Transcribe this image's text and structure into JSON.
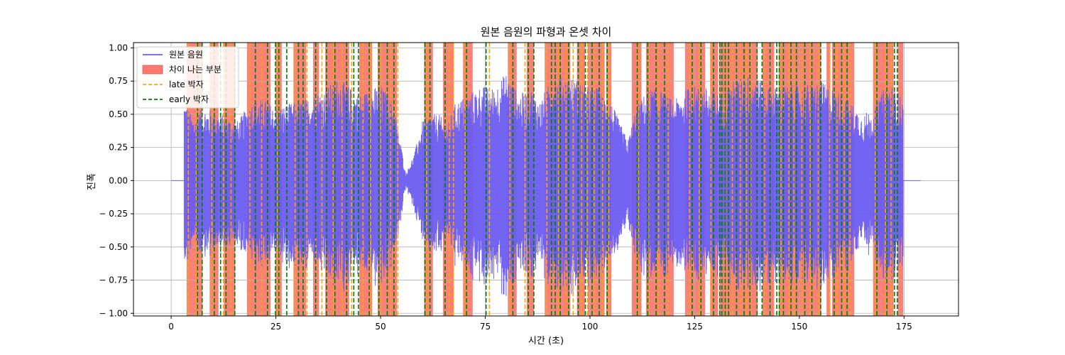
{
  "chart_data": {
    "type": "line",
    "title": "원본 음원의 파형과 온셋 차이",
    "xlabel": "시간 (초)",
    "ylabel": "진폭",
    "xlim": [
      -9,
      188
    ],
    "ylim": [
      -1.02,
      1.04
    ],
    "x_ticks": [
      0,
      25,
      50,
      75,
      100,
      125,
      150,
      175
    ],
    "x_tick_labels": [
      "0",
      "25",
      "50",
      "75",
      "100",
      "125",
      "150",
      "175"
    ],
    "y_ticks": [
      1.0,
      0.75,
      0.5,
      0.25,
      0.0,
      -0.25,
      -0.5,
      -0.75,
      -1.0
    ],
    "y_tick_labels": [
      "1.00",
      "0.75",
      "0.50",
      "0.25",
      "0.00",
      "− 0.25",
      "− 0.50",
      "− 0.75",
      "− 1.00"
    ],
    "grid": true,
    "legend_position": "top-left",
    "colors": {
      "waveform": "#6b5cf0",
      "diff_region": "#fa7a70",
      "late": "#ffa500",
      "early": "#008000"
    },
    "series": [
      {
        "name": "원본 음원",
        "kind": "waveform",
        "duration": 179,
        "audio_start": 3.1,
        "audio_end": 174.8,
        "envelope_knots": [
          [
            3.1,
            0.62
          ],
          [
            5,
            0.48
          ],
          [
            8,
            0.55
          ],
          [
            12,
            0.5
          ],
          [
            16,
            0.45
          ],
          [
            19,
            0.6
          ],
          [
            22,
            0.62
          ],
          [
            25,
            0.55
          ],
          [
            28,
            0.58
          ],
          [
            31,
            0.6
          ],
          [
            34,
            0.65
          ],
          [
            37,
            0.7
          ],
          [
            40,
            0.78
          ],
          [
            42,
            0.72
          ],
          [
            45,
            0.65
          ],
          [
            48,
            0.7
          ],
          [
            50,
            0.72
          ],
          [
            53,
            0.6
          ],
          [
            55,
            0.25
          ],
          [
            56,
            0.05
          ],
          [
            58,
            0.2
          ],
          [
            60,
            0.45
          ],
          [
            62,
            0.5
          ],
          [
            64,
            0.5
          ],
          [
            66,
            0.42
          ],
          [
            68,
            0.6
          ],
          [
            71,
            0.65
          ],
          [
            74,
            0.72
          ],
          [
            77,
            0.7
          ],
          [
            80,
            0.82
          ],
          [
            83,
            0.65
          ],
          [
            86,
            0.7
          ],
          [
            88,
            0.6
          ],
          [
            91,
            0.78
          ],
          [
            95,
            0.8
          ],
          [
            99,
            0.72
          ],
          [
            102,
            0.7
          ],
          [
            105,
            0.6
          ],
          [
            107,
            0.45
          ],
          [
            109,
            0.3
          ],
          [
            111,
            0.55
          ],
          [
            114,
            0.7
          ],
          [
            117,
            0.68
          ],
          [
            120,
            0.6
          ],
          [
            124,
            0.72
          ],
          [
            128,
            0.7
          ],
          [
            131,
            0.65
          ],
          [
            135,
            0.78
          ],
          [
            139,
            0.8
          ],
          [
            143,
            0.7
          ],
          [
            147,
            0.72
          ],
          [
            151,
            0.72
          ],
          [
            155,
            0.75
          ],
          [
            158,
            0.7
          ],
          [
            162,
            0.6
          ],
          [
            165,
            0.5
          ],
          [
            168,
            0.55
          ],
          [
            171,
            0.75
          ],
          [
            173,
            0.7
          ],
          [
            174.8,
            0.6
          ]
        ]
      }
    ],
    "diff_regions": {
      "name": "차이 나는 부분",
      "spans": [
        [
          3.7,
          7.5
        ],
        [
          9.2,
          11.3
        ],
        [
          12.6,
          15.3
        ],
        [
          18.1,
          23.7
        ],
        [
          24.9,
          26.4
        ],
        [
          29.2,
          32.2
        ],
        [
          33.9,
          35.3
        ],
        [
          36.8,
          42.5
        ],
        [
          44.9,
          48.0
        ],
        [
          49.3,
          53.9
        ],
        [
          60.4,
          62.5
        ],
        [
          64.9,
          67.5
        ],
        [
          69.7,
          72.0
        ],
        [
          80.4,
          82.5
        ],
        [
          84.9,
          86.6
        ],
        [
          89.2,
          95.3
        ],
        [
          96.9,
          98.8
        ],
        [
          99.5,
          103.5
        ],
        [
          103.9,
          105.1
        ],
        [
          110.0,
          112.3
        ],
        [
          113.4,
          120.0
        ],
        [
          122.7,
          127.5
        ],
        [
          128.7,
          130.6
        ],
        [
          130.9,
          140.0
        ],
        [
          141.2,
          144.0
        ],
        [
          145.1,
          155.2
        ],
        [
          156.5,
          157.4
        ],
        [
          157.8,
          163.1
        ],
        [
          167.6,
          172.5
        ],
        [
          173.5,
          174.8
        ]
      ]
    },
    "late_onsets": {
      "name": "late 박자",
      "times": [
        4.1,
        6.0,
        9.7,
        12.5,
        14.3,
        18.8,
        21.6,
        25.4,
        29.6,
        32.4,
        36.0,
        38.7,
        40.8,
        43.1,
        45.8,
        47.6,
        50.0,
        52.4,
        54.1,
        61.0,
        66.4,
        67.4,
        70.2,
        76.0,
        80.9,
        84.5,
        89.7,
        92.5,
        94.3,
        96.0,
        98.0,
        99.4,
        101.0,
        103.0,
        104.5,
        111.6,
        114.0,
        116.4,
        118.7,
        123.8,
        126.1,
        128.9,
        132.4,
        134.0,
        135.9,
        137.4,
        138.4,
        141.7,
        145.6,
        147.5,
        148.7,
        150.6,
        152.6,
        154.5,
        157.2,
        159.0,
        160.7,
        162.1,
        168.1,
        170.6,
        171.9
      ]
    },
    "early_onsets": {
      "name": "early 박자",
      "times": [
        6.3,
        7.4,
        10.3,
        11.8,
        13.1,
        15.2,
        20.1,
        23.0,
        24.9,
        25.7,
        27.6,
        30.4,
        31.5,
        34.5,
        37.1,
        39.1,
        41.9,
        43.6,
        44.7,
        47.3,
        49.6,
        51.6,
        53.2,
        60.6,
        61.8,
        65.4,
        70.5,
        75.2,
        81.6,
        85.3,
        86.6,
        90.8,
        91.7,
        92.9,
        94.9,
        97.2,
        98.9,
        100.5,
        102.2,
        104.1,
        111.3,
        113.8,
        115.8,
        117.8,
        124.4,
        126.5,
        129.5,
        131.0,
        131.5,
        132.3,
        133.1,
        135.0,
        136.8,
        138.2,
        139.9,
        141.1,
        143.0,
        144.6,
        145.2,
        146.2,
        148.0,
        149.3,
        151.3,
        153.0,
        155.1,
        158.3,
        160.1,
        161.4,
        168.5,
        170.9,
        172.7,
        173.4
      ]
    }
  }
}
